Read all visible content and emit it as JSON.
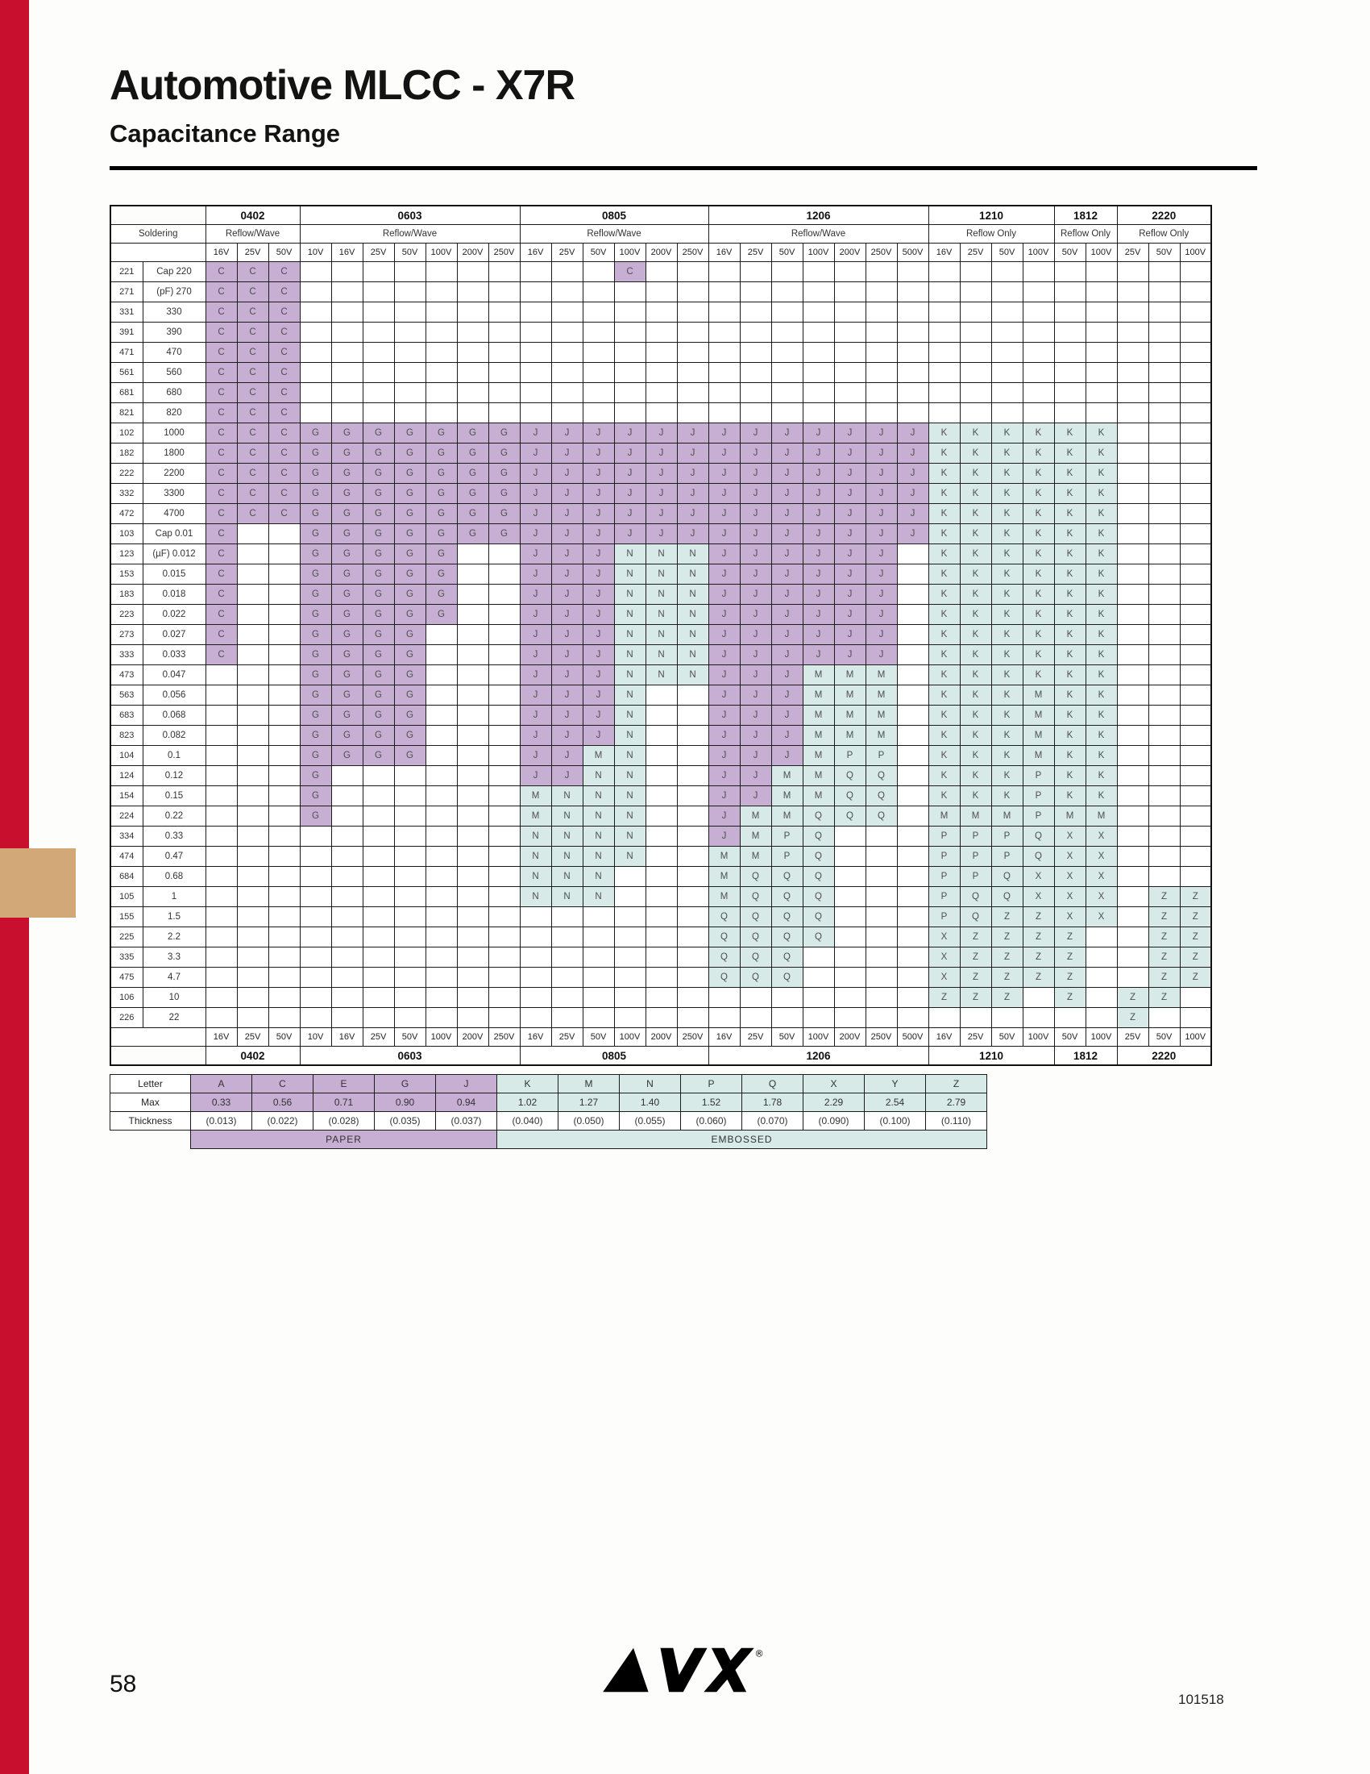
{
  "page": {
    "title": "Automotive MLCC - X7R",
    "subtitle": "Capacitance Range",
    "page_number": "58",
    "doc_number": "101518",
    "logo_text": "AVX"
  },
  "colors": {
    "paper": "#c7aed3",
    "embossed": "#d7eae8",
    "red_strip": "#c8102e",
    "tan_tab": "#d2a879"
  },
  "table": {
    "soldering_label": "Soldering",
    "groups": [
      {
        "name": "0402",
        "soldering": "Reflow/Wave",
        "voltages": [
          "16V",
          "25V",
          "50V"
        ]
      },
      {
        "name": "0603",
        "soldering": "Reflow/Wave",
        "voltages": [
          "10V",
          "16V",
          "25V",
          "50V",
          "100V",
          "200V",
          "250V"
        ]
      },
      {
        "name": "0805",
        "soldering": "Reflow/Wave",
        "voltages": [
          "16V",
          "25V",
          "50V",
          "100V",
          "200V",
          "250V"
        ]
      },
      {
        "name": "1206",
        "soldering": "Reflow/Wave",
        "voltages": [
          "16V",
          "25V",
          "50V",
          "100V",
          "200V",
          "250V",
          "500V"
        ]
      },
      {
        "name": "1210",
        "soldering": "Reflow Only",
        "voltages": [
          "16V",
          "25V",
          "50V",
          "100V"
        ]
      },
      {
        "name": "1812",
        "soldering": "Reflow Only",
        "voltages": [
          "50V",
          "100V"
        ]
      },
      {
        "name": "2220",
        "soldering": "Reflow Only",
        "voltages": [
          "25V",
          "50V",
          "100V"
        ]
      }
    ],
    "rows": [
      {
        "code": "221",
        "label": "Cap 220",
        "cells": "CCC..........C.................."
      },
      {
        "code": "271",
        "label": "(pF) 270",
        "cells": "CCC............................."
      },
      {
        "code": "331",
        "label": "330",
        "cells": "CCC............................."
      },
      {
        "code": "391",
        "label": "390",
        "cells": "CCC............................."
      },
      {
        "code": "471",
        "label": "470",
        "cells": "CCC............................."
      },
      {
        "code": "561",
        "label": "560",
        "cells": "CCC............................."
      },
      {
        "code": "681",
        "label": "680",
        "cells": "CCC............................."
      },
      {
        "code": "821",
        "label": "820",
        "cells": "CCC............................."
      },
      {
        "code": "102",
        "label": "1000",
        "cells": "CCCGGGGGGGJJJJJJJJJJJJJKKKKKK..."
      },
      {
        "code": "182",
        "label": "1800",
        "cells": "CCCGGGGGGGJJJJJJJJJJJJJKKKKKK..."
      },
      {
        "code": "222",
        "label": "2200",
        "cells": "CCCGGGGGGGJJJJJJJJJJJJJKKKKKK..."
      },
      {
        "code": "332",
        "label": "3300",
        "cells": "CCCGGGGGGGJJJJJJJJJJJJJKKKKKK..."
      },
      {
        "code": "472",
        "label": "4700",
        "cells": "CCCGGGGGGGJJJJJJJJJJJJJKKKKKK..."
      },
      {
        "code": "103",
        "label": "Cap 0.01",
        "cells": "C..GGGGGGGJJJJJJJJJJJJJKKKKKK..."
      },
      {
        "code": "123",
        "label": "(µF) 0.012",
        "cells": "C..GGGGG..JJJNNNJJJJJJ.KKKKKK..."
      },
      {
        "code": "153",
        "label": "0.015",
        "cells": "C..GGGGG..JJJNNNJJJJJJ.KKKKKK..."
      },
      {
        "code": "183",
        "label": "0.018",
        "cells": "C..GGGGG..JJJNNNJJJJJJ.KKKKKK..."
      },
      {
        "code": "223",
        "label": "0.022",
        "cells": "C..GGGGG..JJJNNNJJJJJJ.KKKKKK..."
      },
      {
        "code": "273",
        "label": "0.027",
        "cells": "C..GGGG...JJJNNNJJJJJJ.KKKKKK..."
      },
      {
        "code": "333",
        "label": "0.033",
        "cells": "C..GGGG...JJJNNNJJJJJJ.KKKKKK..."
      },
      {
        "code": "473",
        "label": "0.047",
        "cells": "...GGGG...JJJNNNJJJMMM.KKKKKK..."
      },
      {
        "code": "563",
        "label": "0.056",
        "cells": "...GGGG...JJJN..JJJMMM.KKKMKK..."
      },
      {
        "code": "683",
        "label": "0.068",
        "cells": "...GGGG...JJJN..JJJMMM.KKKMKK..."
      },
      {
        "code": "823",
        "label": "0.082",
        "cells": "...GGGG...JJJN..JJJMMM.KKKMKK..."
      },
      {
        "code": "104",
        "label": "0.1",
        "cells": "...GGGG...JJMN..JJJMPP.KKKMKK..."
      },
      {
        "code": "124",
        "label": "0.12",
        "cells": "...G......JJNN..JJMMQQ.KKKPKK..."
      },
      {
        "code": "154",
        "label": "0.15",
        "cells": "...G......MNNN..JJMMQQ.KKKPKK..."
      },
      {
        "code": "224",
        "label": "0.22",
        "cells": "...G......MNNN..JMMQQQ.MMMPMM..."
      },
      {
        "code": "334",
        "label": "0.33",
        "cells": "..........NNNN..JMPQ...PPPQXX..."
      },
      {
        "code": "474",
        "label": "0.47",
        "cells": "..........NNNN..MMPQ...PPPQXX..."
      },
      {
        "code": "684",
        "label": "0.68",
        "cells": "..........NNN...MQQQ...PPQXXX..."
      },
      {
        "code": "105",
        "label": "1",
        "cells": "..........NNN...MQQQ...PQQXXX.ZZ"
      },
      {
        "code": "155",
        "label": "1.5",
        "cells": "................QQQQ...PQZZXX.ZZ"
      },
      {
        "code": "225",
        "label": "2.2",
        "cells": "................QQQQ...XZZZZ..ZZ"
      },
      {
        "code": "335",
        "label": "3.3",
        "cells": "................QQQ....XZZZZ..ZZ"
      },
      {
        "code": "475",
        "label": "4.7",
        "cells": "................QQQ....XZZZZ..ZZ"
      },
      {
        "code": "106",
        "label": "10",
        "cells": ".......................ZZZ.Z.ZZ."
      },
      {
        "code": "226",
        "label": "22",
        "cells": ".............................Z.."
      }
    ]
  },
  "legend": {
    "letter_label": "Letter",
    "max_label": "Max",
    "thickness_label": "Thickness",
    "letters": [
      "A",
      "C",
      "E",
      "G",
      "J",
      "K",
      "M",
      "N",
      "P",
      "Q",
      "X",
      "Y",
      "Z"
    ],
    "max_mm": [
      "0.33",
      "0.56",
      "0.71",
      "0.90",
      "0.94",
      "1.02",
      "1.27",
      "1.40",
      "1.52",
      "1.78",
      "2.29",
      "2.54",
      "2.79"
    ],
    "max_in": [
      "(0.013)",
      "(0.022)",
      "(0.028)",
      "(0.035)",
      "(0.037)",
      "(0.040)",
      "(0.050)",
      "(0.055)",
      "(0.060)",
      "(0.070)",
      "(0.090)",
      "(0.100)",
      "(0.110)"
    ],
    "paper_letters": [
      "A",
      "C",
      "E",
      "G",
      "J"
    ],
    "paper_label": "PAPER",
    "embossed_label": "EMBOSSED"
  }
}
